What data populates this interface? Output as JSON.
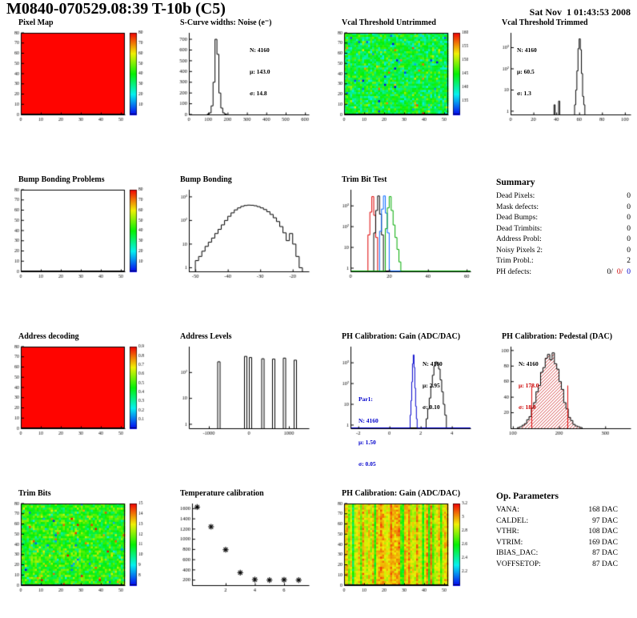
{
  "header": {
    "title": "M0840-070529.08:39 T-10b (C5)",
    "date": "Sat Nov  1 01:43:53 2008"
  },
  "colors": {
    "accent_red": "#cc0000",
    "accent_blue": "#0000cc",
    "map_red": "#ff0400",
    "series_green": "#00aa00",
    "series_lightblue": "#0066ff"
  },
  "summary": {
    "title": "Summary",
    "rows": [
      {
        "label": "Dead Pixels:",
        "value": "0"
      },
      {
        "label": "Mask defects:",
        "value": "0"
      },
      {
        "label": "Dead Bumps:",
        "value": "0"
      },
      {
        "label": "Dead Trimbits:",
        "value": "0"
      },
      {
        "label": "Address Probl:",
        "value": "0"
      },
      {
        "label": "Noisy Pixels 2:",
        "value": "0"
      },
      {
        "label": "Trim Probl.:",
        "value": "2"
      }
    ],
    "ph_defects": {
      "label": "PH defects:",
      "parts": [
        "0/",
        "0/",
        "0"
      ]
    }
  },
  "op_parameters": {
    "title": "Op. Parameters",
    "rows": [
      {
        "label": "VANA:",
        "value": "168 DAC"
      },
      {
        "label": "CALDEL:",
        "value": "97 DAC"
      },
      {
        "label": "VTHR:",
        "value": "108 DAC"
      },
      {
        "label": "VTRIM:",
        "value": "169 DAC"
      },
      {
        "label": "IBIAS_DAC:",
        "value": "87 DAC"
      },
      {
        "label": "VOFFSETOP:",
        "value": "87 DAC"
      }
    ]
  },
  "chart_data": [
    {
      "id": "pixel_map",
      "type": "heatmap",
      "mode": "uniform",
      "fill": "#ff0400",
      "title": "Pixel Map",
      "x": {
        "min": 0,
        "max": 52,
        "ticks": [
          0,
          10,
          20,
          30,
          40,
          50
        ]
      },
      "y": {
        "min": 0,
        "max": 80,
        "ticks": [
          0,
          10,
          20,
          30,
          40,
          50,
          60,
          70,
          80
        ]
      },
      "colorbar": [
        "10",
        "20",
        "30",
        "40",
        "50",
        "60",
        "70",
        "80"
      ]
    },
    {
      "id": "scurve_noise",
      "type": "hist",
      "title": "S-Curve widths: Noise (e⁻)",
      "color": "#000000",
      "bin_start": 95,
      "bin_width": 10,
      "counts": [
        3,
        15,
        80,
        300,
        700,
        560,
        200,
        60,
        15,
        4
      ],
      "x": {
        "min": 0,
        "max": 620,
        "ticks": [
          0,
          100,
          200,
          300,
          400,
          500,
          600
        ]
      },
      "y": {
        "min": 0,
        "max": 760,
        "ticks": [
          0,
          100,
          200,
          300,
          400,
          500,
          600,
          700
        ]
      },
      "stats": [
        "N: 4160",
        "μ: 143.0",
        "σ: 14.8"
      ]
    },
    {
      "id": "vcal_untrimmed",
      "type": "heatmap",
      "mode": "noise",
      "base": 0.45,
      "noise": 0.22,
      "outlier_p": 0.05,
      "seed": 3,
      "title": "Vcal Threshold Untrimmed",
      "x": {
        "min": 0,
        "max": 52,
        "ticks": [
          0,
          10,
          20,
          30,
          40,
          50
        ]
      },
      "y": {
        "min": 0,
        "max": 80,
        "ticks": [
          0,
          10,
          20,
          30,
          40,
          50,
          60,
          70,
          80
        ]
      },
      "colorbar": [
        "135",
        "140",
        "145",
        "150",
        "155",
        "160"
      ]
    },
    {
      "id": "vcal_trimmed",
      "type": "hist",
      "title": "Vcal Threshold Trimmed",
      "color": "#000000",
      "bin_start": 38,
      "bin_width": 1,
      "counts": [
        2,
        0,
        0,
        0,
        3,
        0,
        0,
        0,
        0,
        0,
        0,
        0,
        0,
        0,
        0,
        0,
        0,
        0,
        2,
        10,
        80,
        900,
        2600,
        800,
        60,
        5,
        2
      ],
      "x": {
        "min": 0,
        "max": 105,
        "ticks": [
          0,
          20,
          40,
          60,
          80,
          100
        ]
      },
      "y": {
        "min": 0.7,
        "max": 5000,
        "log": true,
        "ticks": [
          1,
          10,
          100,
          1000
        ],
        "labels": [
          "1",
          "10",
          "10²",
          "10³"
        ]
      },
      "stats": [
        "N: 4160",
        "μ: 60.5",
        "σ: 1.3"
      ]
    },
    {
      "id": "bump_problems",
      "type": "heatmap",
      "mode": "empty",
      "title": "Bump Bonding Problems",
      "x": {
        "min": 0,
        "max": 52,
        "ticks": [
          0,
          10,
          20,
          30,
          40,
          50
        ]
      },
      "y": {
        "min": 0,
        "max": 80,
        "ticks": [
          0,
          10,
          20,
          30,
          40,
          50,
          60,
          70,
          80
        ]
      },
      "colorbar": [
        "10",
        "20",
        "30",
        "40",
        "50",
        "60",
        "70",
        "80"
      ]
    },
    {
      "id": "bump_bonding",
      "type": "hist",
      "title": "Bump Bonding",
      "color": "#000000",
      "bin_start": -50,
      "bin_width": 1,
      "counts": [
        2,
        3,
        5,
        8,
        12,
        18,
        28,
        42,
        65,
        100,
        150,
        210,
        280,
        340,
        395,
        430,
        445,
        440,
        420,
        385,
        340,
        290,
        235,
        180,
        130,
        90,
        55,
        30,
        14,
        28,
        10,
        3,
        1
      ],
      "x": {
        "min": -52,
        "max": -15,
        "ticks": [
          -50,
          -40,
          -30,
          -20
        ]
      },
      "y": {
        "min": 0.7,
        "max": 2000,
        "log": true,
        "ticks": [
          1,
          10,
          100,
          1000
        ],
        "labels": [
          "1",
          "10",
          "10²",
          "10³"
        ]
      }
    },
    {
      "id": "trim_bit_test",
      "type": "multihist",
      "title": "Trim Bit Test",
      "series": [
        {
          "name": "trim-bit-red",
          "color": "#dd0000",
          "bin_start": 9,
          "bin_width": 1,
          "counts": [
            40,
            500,
            2800,
            350,
            30
          ]
        },
        {
          "name": "trim-bit-black",
          "color": "#000000",
          "bin_start": 12,
          "bin_width": 1,
          "counts": [
            50,
            600,
            3000,
            400,
            40
          ]
        },
        {
          "name": "trim-bit-blue",
          "color": "#0066ff",
          "bin_start": 15,
          "bin_width": 1,
          "counts": [
            60,
            700,
            3000,
            450,
            50
          ]
        },
        {
          "name": "trim-bit-green",
          "color": "#00aa00",
          "bin_start": 18,
          "bin_width": 1,
          "counts": [
            80,
            800,
            2800,
            600,
            120,
            30,
            8,
            2
          ]
        }
      ],
      "x": {
        "min": 0,
        "max": 62,
        "ticks": [
          0,
          20,
          40,
          60
        ]
      },
      "y": {
        "min": 0.7,
        "max": 6000,
        "log": true,
        "ticks": [
          1,
          10,
          100,
          1000
        ],
        "labels": [
          "1",
          "10",
          "10²",
          "10³"
        ]
      }
    },
    {
      "id": "address_decoding",
      "type": "heatmap",
      "mode": "uniform",
      "fill": "#ff0400",
      "title": "Address decoding",
      "x": {
        "min": 0,
        "max": 52,
        "ticks": [
          0,
          10,
          20,
          30,
          40,
          50
        ]
      },
      "y": {
        "min": 0,
        "max": 80,
        "ticks": [
          0,
          10,
          20,
          30,
          40,
          50,
          60,
          70,
          80
        ]
      },
      "colorbar": [
        "0.1",
        "0.2",
        "0.3",
        "0.4",
        "0.5",
        "0.6",
        "0.7",
        "0.8",
        "0.9"
      ]
    },
    {
      "id": "address_levels",
      "type": "spikehist",
      "title": "Address Levels",
      "spikes": [
        [
          -750,
          260
        ],
        [
          -80,
          420
        ],
        [
          40,
          380
        ],
        [
          350,
          340
        ],
        [
          620,
          330
        ],
        [
          890,
          360
        ],
        [
          1160,
          300
        ]
      ],
      "x": {
        "min": -1500,
        "max": 1500,
        "ticks": [
          -1000,
          0,
          1000
        ]
      },
      "y": {
        "min": 0.7,
        "max": 1000,
        "log": true,
        "ticks": [
          1,
          10,
          100
        ],
        "labels": [
          "1",
          "10",
          "10²"
        ]
      }
    },
    {
      "id": "ph_gain_hist",
      "type": "multihist",
      "title": "PH Calibration: Gain (ADC/DAC)",
      "series": [
        {
          "name": "gain",
          "color": "#000000",
          "bin_start": 2.35,
          "bin_width": 0.1,
          "counts": [
            2,
            6,
            20,
            70,
            250,
            700,
            1100,
            950,
            500,
            150,
            40,
            10,
            3
          ]
        },
        {
          "name": "par1",
          "color": "#0000cc",
          "bin_start": 1.325,
          "bin_width": 0.05,
          "counts": [
            3,
            15,
            120,
            900,
            2400,
            600,
            60,
            8,
            2
          ]
        }
      ],
      "x": {
        "min": -2.5,
        "max": 5.2,
        "ticks": [
          -2,
          0,
          2,
          4
        ]
      },
      "y": {
        "min": 0.7,
        "max": 6000,
        "log": true,
        "ticks": [
          1,
          10,
          100,
          1000
        ],
        "labels": [
          "1",
          "10",
          "10²",
          "10³"
        ]
      },
      "stats": [
        "N: 4160",
        "μ: 2.95",
        "σ: 0.10"
      ],
      "stats2": [
        "Par1:",
        "N: 4160",
        "μ: 1.50",
        "σ: 0.05"
      ]
    },
    {
      "id": "ph_pedestal",
      "type": "histfill",
      "title": "PH Calibration: Pedestal (DAC)",
      "color": "#000000",
      "fill_color": "#cc2222",
      "bin_start": 110,
      "bin_width": 5,
      "counts": [
        1,
        2,
        4,
        6,
        11,
        15,
        26,
        33,
        47,
        55,
        72,
        78,
        90,
        95,
        88,
        97,
        83,
        76,
        60,
        50,
        33,
        25,
        14,
        10,
        5,
        3,
        2,
        1
      ],
      "vlines": [
        {
          "x": 140,
          "h": 55,
          "color": "#dd0000"
        },
        {
          "x": 218,
          "h": 55,
          "color": "#dd0000"
        }
      ],
      "x": {
        "min": 95,
        "max": 355,
        "ticks": [
          100,
          200,
          300
        ]
      },
      "y": {
        "min": 0,
        "max": 105,
        "ticks": [
          20,
          40,
          60,
          80,
          100
        ]
      },
      "stats": [
        "N: 4160",
        "μ: 178.0",
        "σ: 18.0"
      ]
    },
    {
      "id": "trim_bits",
      "type": "heatmap",
      "mode": "noise",
      "base": 0.52,
      "noise": 0.2,
      "outlier_p": 0.06,
      "seed": 9,
      "title": "Trim Bits",
      "x": {
        "min": 0,
        "max": 52,
        "ticks": [
          0,
          10,
          20,
          30,
          40,
          50
        ]
      },
      "y": {
        "min": 0,
        "max": 80,
        "ticks": [
          0,
          10,
          20,
          30,
          40,
          50,
          60,
          70,
          80
        ]
      },
      "colorbar": [
        "8",
        "9",
        "10",
        "11",
        "12",
        "13",
        "14",
        "15"
      ]
    },
    {
      "id": "temperature_calibration",
      "type": "scatter",
      "title": "Temperature calibration",
      "pad_left": 30,
      "points": [
        [
          0.05,
          1630
        ],
        [
          1,
          1245
        ],
        [
          2,
          795
        ],
        [
          3,
          345
        ],
        [
          4,
          210
        ],
        [
          5,
          200
        ],
        [
          6,
          205
        ],
        [
          7,
          200
        ]
      ],
      "x": {
        "min": -0.3,
        "max": 7.7,
        "ticks": [
          2,
          4,
          6
        ]
      },
      "y": {
        "min": 100,
        "max": 1700,
        "ticks": [
          200,
          400,
          600,
          800,
          1000,
          1200,
          1400,
          1600
        ]
      }
    },
    {
      "id": "ph_gain_map",
      "type": "heatmap",
      "mode": "stripes",
      "base": 0.78,
      "col_spread": 0.18,
      "noise": 0.16,
      "green_col_p": 0.15,
      "seed": 5,
      "title": "PH Calibration: Gain (ADC/DAC)",
      "x": {
        "min": 0,
        "max": 52,
        "ticks": [
          0,
          10,
          20,
          30,
          40,
          50
        ]
      },
      "y": {
        "min": 0,
        "max": 80,
        "ticks": [
          0,
          10,
          20,
          30,
          40,
          50,
          60,
          70,
          80
        ]
      },
      "colorbar": [
        "2.2",
        "2.4",
        "2.6",
        "2.8",
        "3",
        "3.2"
      ]
    }
  ]
}
